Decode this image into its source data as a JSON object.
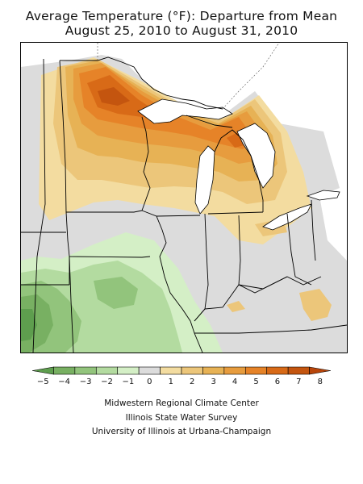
{
  "title": {
    "line1": "Average Temperature (°F): Departure from Mean",
    "line2": "August 25, 2010 to August 31, 2010"
  },
  "legend": {
    "bins": [
      {
        "label": "-5",
        "color": "#5e9e4e"
      },
      {
        "label": "-4",
        "color": "#78b062"
      },
      {
        "label": "-3",
        "color": "#92c47c"
      },
      {
        "label": "-2",
        "color": "#b3dba0"
      },
      {
        "label": "-1",
        "color": "#d4efc6"
      },
      {
        "label": "0",
        "color": "#dcdcdc"
      },
      {
        "label": "1",
        "color": "#f3dca0"
      },
      {
        "label": "2",
        "color": "#ecc67a"
      },
      {
        "label": "3",
        "color": "#e7b255"
      },
      {
        "label": "4",
        "color": "#e79c3e"
      },
      {
        "label": "5",
        "color": "#e68328"
      },
      {
        "label": "6",
        "color": "#d86a17"
      },
      {
        "label": "7",
        "color": "#c4550f"
      },
      {
        "label": "8",
        "color": "#b8450a"
      }
    ]
  },
  "credits": {
    "line1": "Midwestern Regional Climate Center",
    "line2": "Illinois State Water Survey",
    "line3": "University of Illinois at Urbana-Champaign"
  }
}
